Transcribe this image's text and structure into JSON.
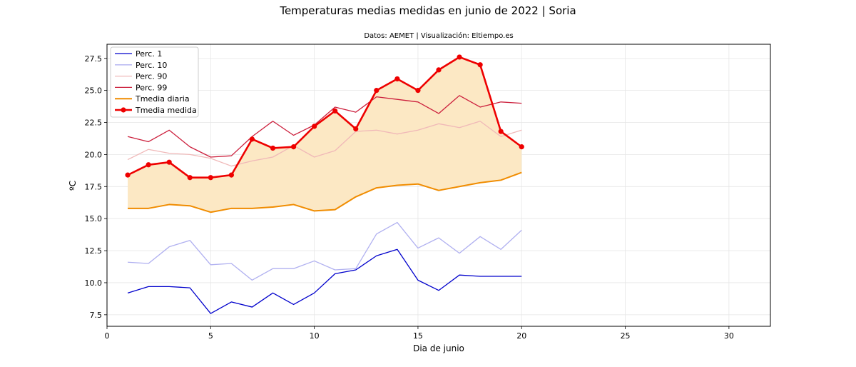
{
  "chart_data": {
    "type": "line",
    "title": "Temperaturas medias medidas en junio de 2022 | Soria",
    "subtitle": "Datos: AEMET | Visualización: Eltiempo.es",
    "xlabel": "Dia de junio",
    "ylabel": "ºC",
    "xlim": [
      0,
      32
    ],
    "ylim": [
      6.6,
      28.6
    ],
    "xticks": [
      0,
      5,
      10,
      15,
      20,
      25,
      30
    ],
    "yticks": [
      7.5,
      10.0,
      12.5,
      15.0,
      17.5,
      20.0,
      22.5,
      25.0,
      27.5
    ],
    "grid": true,
    "legend_position": "upper-left",
    "x": [
      1,
      2,
      3,
      4,
      5,
      6,
      7,
      8,
      9,
      10,
      11,
      12,
      13,
      14,
      15,
      16,
      17,
      18,
      19,
      20
    ],
    "series": [
      {
        "name": "Perc. 1",
        "color": "#0000cc",
        "width": 1.3,
        "markers": false,
        "values": [
          9.2,
          9.7,
          9.7,
          9.6,
          7.6,
          8.5,
          8.1,
          9.2,
          8.3,
          9.2,
          10.7,
          11.0,
          12.1,
          12.6,
          10.2,
          9.4,
          10.6,
          10.5,
          10.5,
          10.5
        ]
      },
      {
        "name": "Perc. 10",
        "color": "#b0b0f0",
        "width": 1.3,
        "markers": false,
        "values": [
          11.6,
          11.5,
          12.8,
          13.3,
          11.4,
          11.5,
          10.2,
          11.1,
          11.1,
          11.7,
          11.0,
          11.1,
          13.8,
          14.7,
          12.7,
          13.5,
          12.3,
          13.6,
          12.6,
          14.1
        ]
      },
      {
        "name": "Perc. 90",
        "color": "#f0b8b8",
        "width": 1.3,
        "markers": false,
        "values": [
          19.6,
          20.4,
          20.1,
          20.0,
          19.7,
          19.1,
          19.5,
          19.8,
          20.7,
          19.8,
          20.3,
          21.8,
          21.9,
          21.6,
          21.9,
          22.4,
          22.1,
          22.6,
          21.4,
          21.9
        ]
      },
      {
        "name": "Perc. 99",
        "color": "#cc1f3c",
        "width": 1.3,
        "markers": false,
        "values": [
          21.4,
          21.0,
          21.9,
          20.6,
          19.8,
          19.9,
          21.4,
          22.6,
          21.5,
          22.3,
          23.7,
          23.3,
          24.5,
          24.3,
          24.1,
          23.2,
          24.6,
          23.7,
          24.1,
          24.0
        ]
      },
      {
        "name": "Tmedia diaria",
        "color": "#f08c00",
        "width": 2,
        "markers": false,
        "values": [
          15.8,
          15.8,
          16.1,
          16.0,
          15.5,
          15.8,
          15.8,
          15.9,
          16.1,
          15.6,
          15.7,
          16.7,
          17.4,
          17.6,
          17.7,
          17.2,
          17.5,
          17.8,
          18.0,
          18.6
        ]
      },
      {
        "name": "Tmedia medida",
        "color": "#ee0000",
        "width": 2.6,
        "markers": true,
        "values": [
          18.4,
          19.2,
          19.4,
          18.2,
          18.2,
          18.4,
          21.2,
          20.5,
          20.6,
          22.2,
          23.4,
          22.0,
          25.0,
          25.9,
          25.0,
          26.6,
          27.6,
          27.0,
          21.8,
          20.6
        ]
      }
    ],
    "fill_between": {
      "lower": "Tmedia diaria",
      "upper": "Tmedia medida",
      "color": "#fce8c4"
    }
  }
}
